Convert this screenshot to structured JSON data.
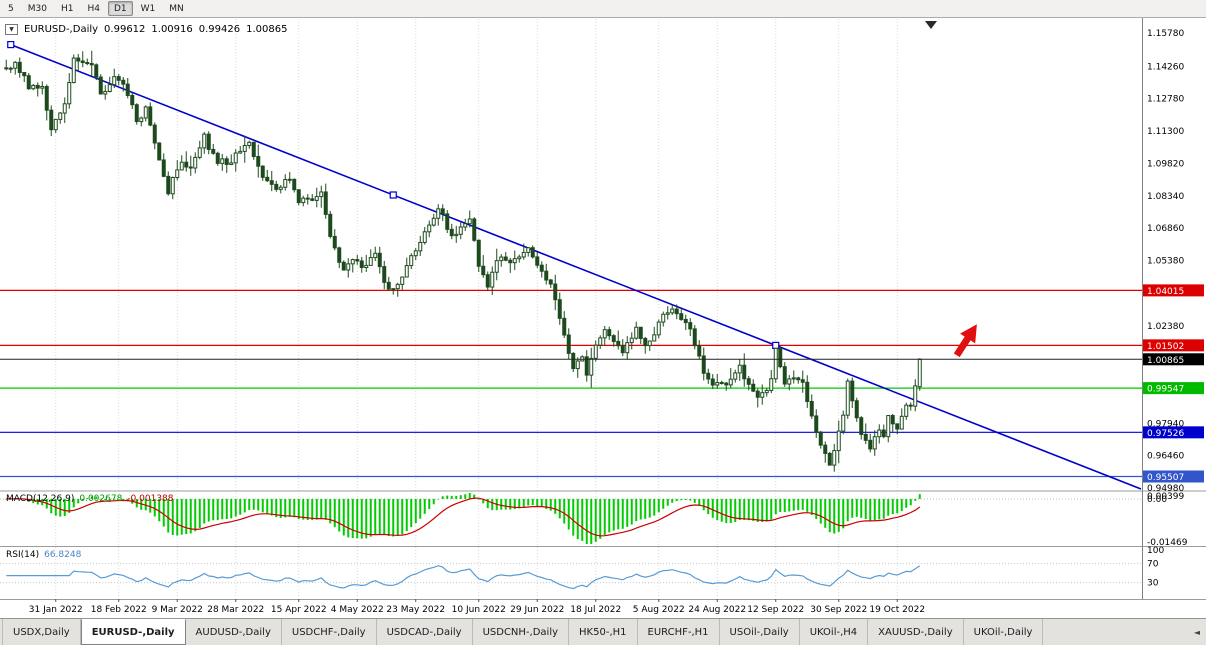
{
  "toolbar": {
    "timeframes": [
      {
        "label": "5",
        "active": false
      },
      {
        "label": "M30",
        "active": false
      },
      {
        "label": "H1",
        "active": false
      },
      {
        "label": "H4",
        "active": false
      },
      {
        "label": "D1",
        "active": true
      },
      {
        "label": "W1",
        "active": false
      },
      {
        "label": "MN",
        "active": false
      }
    ]
  },
  "quote_bar": {
    "dropdown_icon": "▼",
    "symbol": "EURUSD-,Daily",
    "open": "0.99612",
    "high": "1.00916",
    "low": "0.99426",
    "close": "1.00865"
  },
  "chart_data": {
    "type": "candlestick",
    "title": "EURUSD-,Daily",
    "ohlc_current": {
      "open": 0.99612,
      "high": 1.00916,
      "low": 0.99426,
      "close": 1.00865
    },
    "ylim": [
      0.9489,
      1.1642
    ],
    "n_bars": 204,
    "x_labels": [
      {
        "text": "31 Jan 2022",
        "bar": 11
      },
      {
        "text": "18 Feb 2022",
        "bar": 25
      },
      {
        "text": "9 Mar 2022",
        "bar": 38
      },
      {
        "text": "28 Mar 2022",
        "bar": 51
      },
      {
        "text": "15 Apr 2022",
        "bar": 65
      },
      {
        "text": "4 May 2022",
        "bar": 78
      },
      {
        "text": "23 May 2022",
        "bar": 91
      },
      {
        "text": "10 Jun 2022",
        "bar": 105
      },
      {
        "text": "29 Jun 2022",
        "bar": 118
      },
      {
        "text": "18 Jul 2022",
        "bar": 131
      },
      {
        "text": "5 Aug 2022",
        "bar": 145
      },
      {
        "text": "24 Aug 2022",
        "bar": 158
      },
      {
        "text": "12 Sep 2022",
        "bar": 171
      },
      {
        "text": "30 Sep 2022",
        "bar": 185
      },
      {
        "text": "19 Oct 2022",
        "bar": 198
      }
    ],
    "price_axis_labels": [
      "1.15780",
      "1.14260",
      "1.12780",
      "1.11300",
      "1.09820",
      "1.08340",
      "1.06860",
      "1.05380",
      "1.02380",
      "0.97940",
      "0.96460",
      "0.94980"
    ],
    "levels": [
      {
        "price": 1.04015,
        "label": "1.04015",
        "line_color": "#e00000",
        "badge_color": "#dd0000"
      },
      {
        "price": 1.01502,
        "label": "1.01502",
        "line_color": "#e00000",
        "badge_color": "#dd0000"
      },
      {
        "price": 0.99547,
        "label": "0.99547",
        "line_color": "#00cc00",
        "badge_color": "#00ba00"
      },
      {
        "price": 0.97526,
        "label": "0.97526",
        "line_color": "#0000dd",
        "badge_color": "#0000cc"
      },
      {
        "price": 0.95507,
        "label": "0.95507",
        "line_color": "#3355cc",
        "badge_color": "#3355cc"
      }
    ],
    "current_price": {
      "price": 1.00865,
      "label": "1.00865",
      "badge_color": "#000000"
    },
    "trendline": {
      "bar1": 1,
      "price1": 1.1525,
      "bar2": 171,
      "price2": 1.015,
      "color": "#0000cc"
    },
    "arrow_annotation": {
      "x": 966,
      "y": 341,
      "color": "#e01010"
    },
    "price_anchors": [
      [
        0,
        1.1415
      ],
      [
        2,
        1.1448
      ],
      [
        5,
        1.134
      ],
      [
        8,
        1.132
      ],
      [
        10,
        1.114
      ],
      [
        13,
        1.126
      ],
      [
        15,
        1.1448
      ],
      [
        19,
        1.1425
      ],
      [
        21,
        1.13
      ],
      [
        24,
        1.1365
      ],
      [
        26,
        1.133
      ],
      [
        29,
        1.119
      ],
      [
        31,
        1.1225
      ],
      [
        33,
        1.109
      ],
      [
        36,
        1.086
      ],
      [
        39,
        1.099
      ],
      [
        41,
        1.095
      ],
      [
        44,
        1.11
      ],
      [
        47,
        1.098
      ],
      [
        50,
        1.1
      ],
      [
        54,
        1.1065
      ],
      [
        57,
        1.092
      ],
      [
        60,
        1.088
      ],
      [
        63,
        1.091
      ],
      [
        65,
        1.081
      ],
      [
        68,
        1.08
      ],
      [
        70,
        1.084
      ],
      [
        72,
        1.064
      ],
      [
        75,
        1.05
      ],
      [
        77,
        1.056
      ],
      [
        79,
        1.052
      ],
      [
        82,
        1.056
      ],
      [
        85,
        1.0395
      ],
      [
        88,
        1.047
      ],
      [
        91,
        1.058
      ],
      [
        94,
        1.069
      ],
      [
        96,
        1.0775
      ],
      [
        99,
        1.065
      ],
      [
        101,
        1.07
      ],
      [
        103,
        1.0715
      ],
      [
        105,
        1.052
      ],
      [
        107,
        1.0415
      ],
      [
        109,
        1.0545
      ],
      [
        112,
        1.052
      ],
      [
        114,
        1.0555
      ],
      [
        116,
        1.058
      ],
      [
        119,
        1.048
      ],
      [
        121,
        1.0425
      ],
      [
        123,
        1.027
      ],
      [
        124,
        1.018
      ],
      [
        126,
        1.004
      ],
      [
        128,
        1.0085
      ],
      [
        129,
        1.0015
      ],
      [
        131,
        1.0145
      ],
      [
        133,
        1.021
      ],
      [
        135,
        1.0165
      ],
      [
        137,
        1.012
      ],
      [
        139,
        1.0195
      ],
      [
        140,
        1.022
      ],
      [
        142,
        1.0165
      ],
      [
        144,
        1.019
      ],
      [
        146,
        1.029
      ],
      [
        148,
        1.03
      ],
      [
        151,
        1.0255
      ],
      [
        153,
        1.016
      ],
      [
        155,
        1.004
      ],
      [
        157,
        0.997
      ],
      [
        159,
        0.9965
      ],
      [
        161,
        0.999
      ],
      [
        163,
        1.0055
      ],
      [
        165,
        0.9955
      ],
      [
        167,
        0.9905
      ],
      [
        169,
        0.9945
      ],
      [
        170,
        0.999
      ],
      [
        171,
        1.012
      ],
      [
        173,
        0.997
      ],
      [
        175,
        1.0005
      ],
      [
        177,
        0.997
      ],
      [
        179,
        0.981
      ],
      [
        181,
        0.969
      ],
      [
        183,
        0.959
      ],
      [
        184,
        0.967
      ],
      [
        186,
        0.9825
      ],
      [
        187,
        0.998
      ],
      [
        188,
        0.9885
      ],
      [
        190,
        0.974
      ],
      [
        192,
        0.968
      ],
      [
        194,
        0.9775
      ],
      [
        195,
        0.972
      ],
      [
        196,
        0.984
      ],
      [
        198,
        0.9775
      ],
      [
        200,
        0.986
      ],
      [
        201,
        0.987
      ],
      [
        202,
        0.9961
      ],
      [
        203,
        1.0086
      ]
    ],
    "indicators": {
      "macd": {
        "name": "MACD(12,26,9)",
        "value_main": "0.002678",
        "value_signal": "-0.001388",
        "scale_labels": [
          "0.00399",
          "0.00",
          "-0.01469"
        ],
        "histogram_color": "#00cc00",
        "signal_color": "#cc0000"
      },
      "rsi": {
        "name": "RSI(14)",
        "value": "66.8248",
        "scale_labels": [
          "100",
          "70",
          "30"
        ],
        "levels": [
          70,
          30
        ],
        "line_color": "#5b9bd5"
      }
    }
  },
  "bottom_tabs": {
    "scroll_icon": "◄",
    "tabs": [
      {
        "label": "USDX,Daily",
        "active": false
      },
      {
        "label": "EURUSD-,Daily",
        "active": true
      },
      {
        "label": "AUDUSD-,Daily",
        "active": false
      },
      {
        "label": "USDCHF-,Daily",
        "active": false
      },
      {
        "label": "USDCAD-,Daily",
        "active": false
      },
      {
        "label": "USDCNH-,Daily",
        "active": false
      },
      {
        "label": "HK50-,H1",
        "active": false
      },
      {
        "label": "EURCHF-,H1",
        "active": false
      },
      {
        "label": "USOil-,Daily",
        "active": false
      },
      {
        "label": "UKOil-,H4",
        "active": false
      },
      {
        "label": "XAUUSD-,Daily",
        "active": false
      },
      {
        "label": "UKOil-,Daily",
        "active": false
      }
    ]
  }
}
